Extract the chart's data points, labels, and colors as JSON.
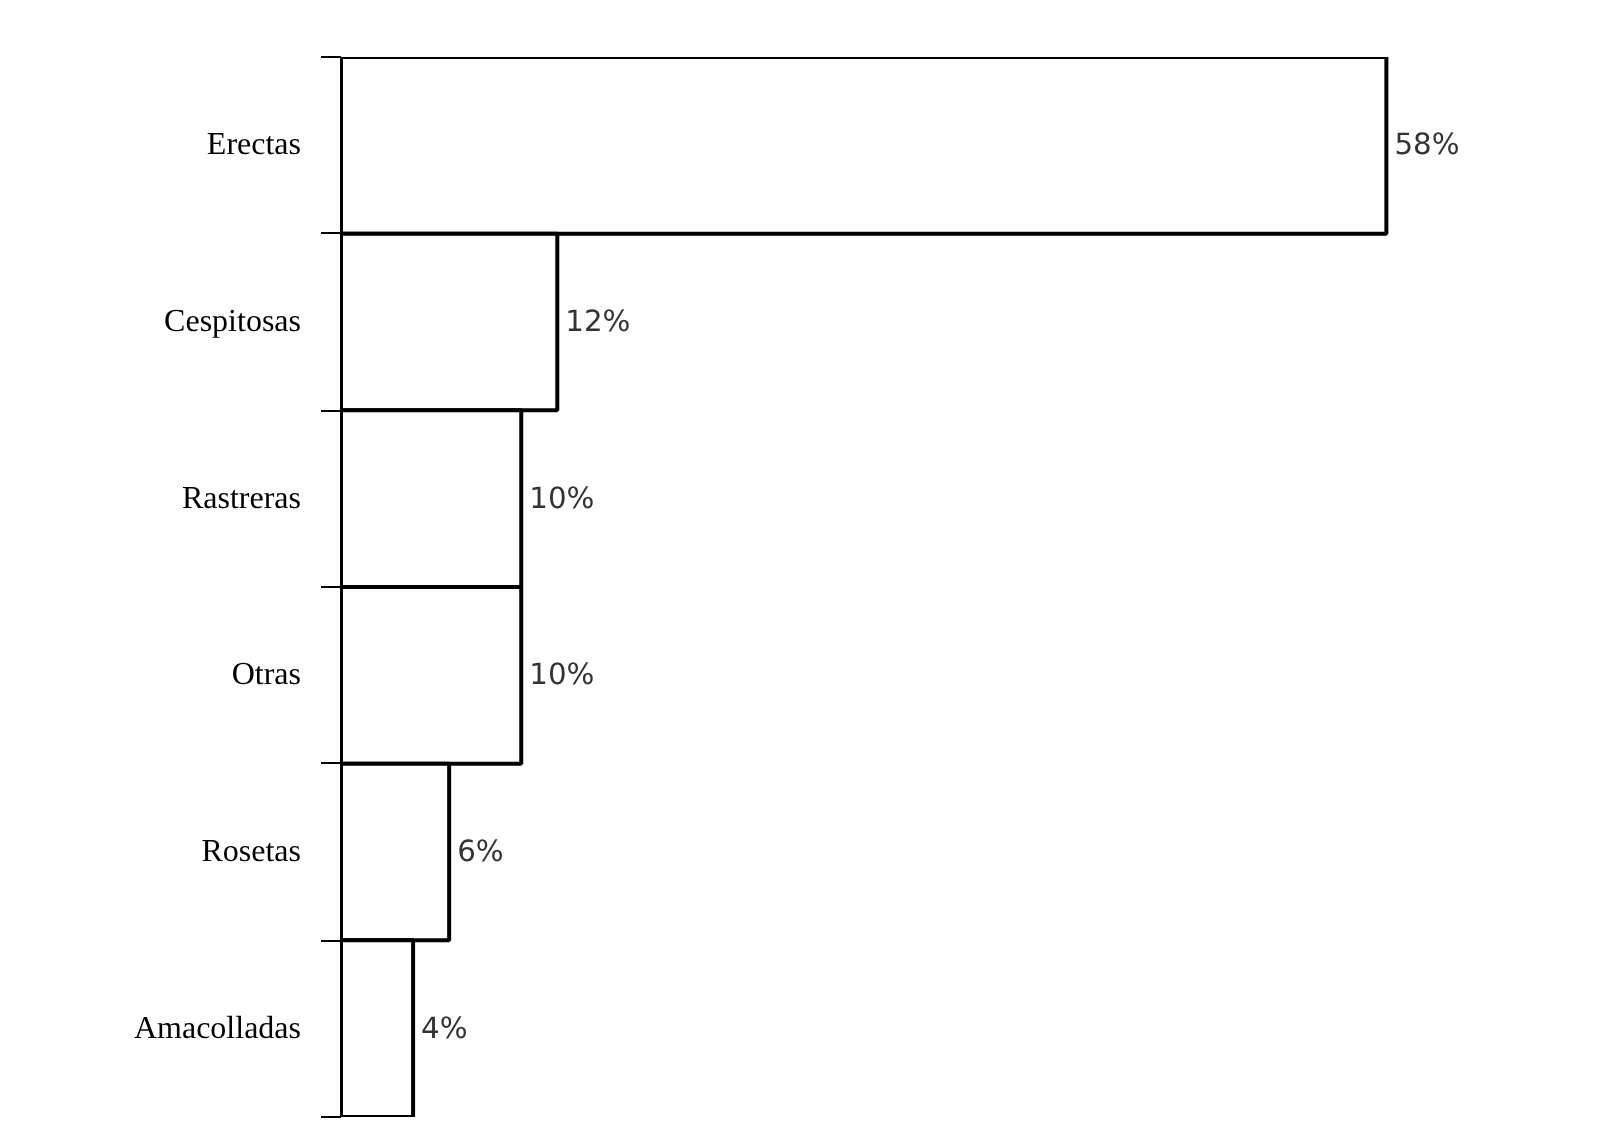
{
  "chart_data": {
    "type": "bar",
    "orientation": "horizontal",
    "categories": [
      "Erectas",
      "Cespitosas",
      "Rastreras",
      "Otras",
      "Rosetas",
      "Amacolladas"
    ],
    "values": [
      58,
      12,
      10,
      10,
      6,
      4
    ],
    "color": "#ffffff",
    "tick_labels": "y",
    "grid": false,
    "data_labels": true,
    "value_labels": [
      "58%",
      "12%",
      "10%",
      "10%",
      "6%",
      "4%"
    ]
  }
}
